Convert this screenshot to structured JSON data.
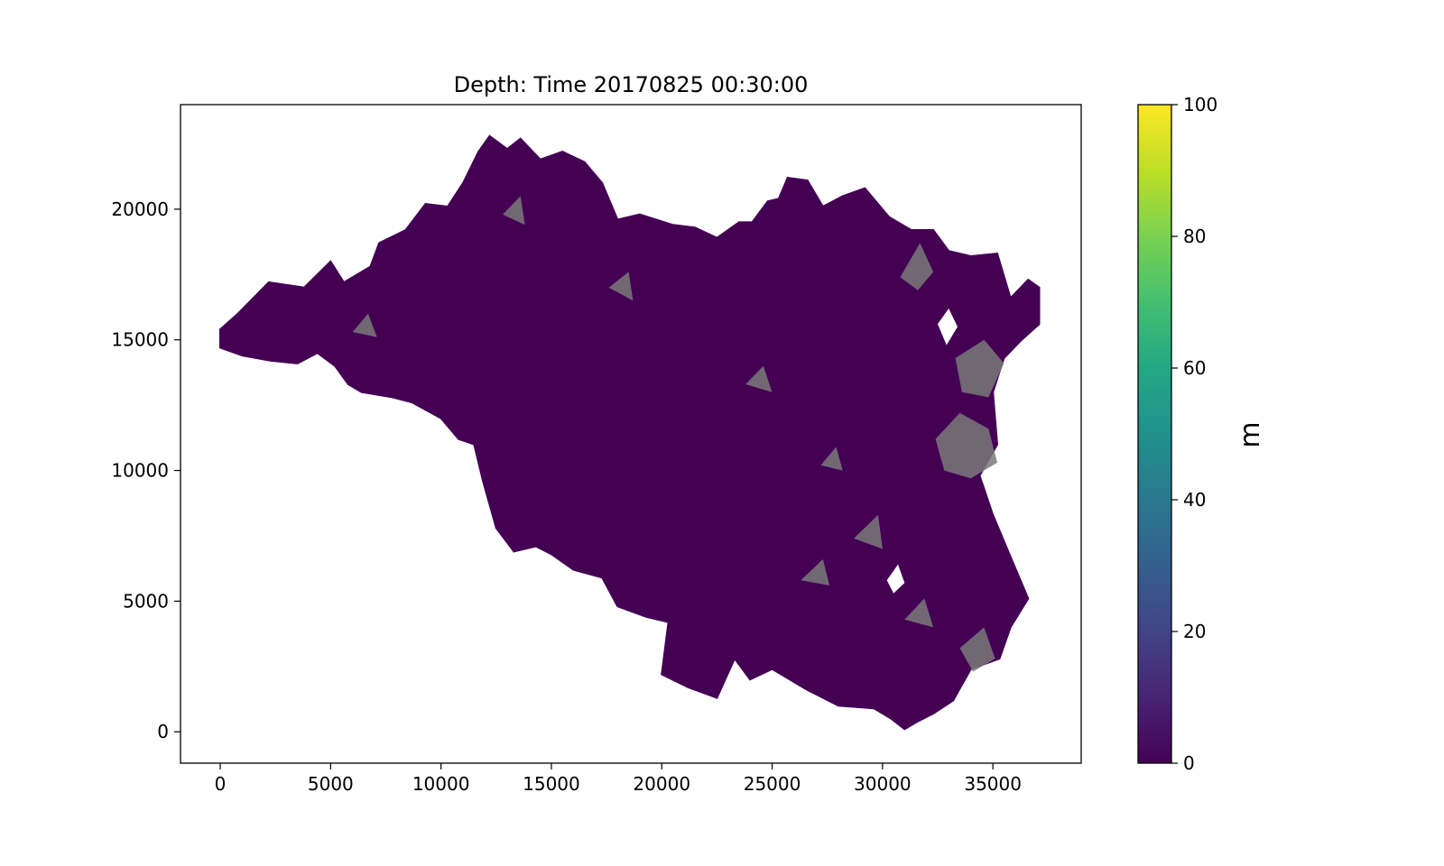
{
  "chart_data": {
    "type": "heatmap",
    "title": "Depth: Time 20170825 00:30:00",
    "xlabel": "",
    "ylabel": "",
    "xlim": [
      -1800,
      39000
    ],
    "ylim": [
      -1200,
      24000
    ],
    "xticks": [
      0,
      5000,
      10000,
      15000,
      20000,
      25000,
      30000,
      35000
    ],
    "yticks": [
      0,
      5000,
      10000,
      15000,
      20000
    ],
    "colorbar": {
      "label": "m",
      "range": [
        0,
        100
      ],
      "ticks": [
        0,
        20,
        40,
        60,
        80,
        100
      ],
      "colormap": "viridis"
    },
    "field_value_dominant": 0,
    "domain_color": "#440154",
    "dry_cell_color": "#7a7a7a",
    "domain_outline": [
      [
        0,
        15400
      ],
      [
        800,
        16000
      ],
      [
        2200,
        17200
      ],
      [
        3800,
        17000
      ],
      [
        5000,
        18000
      ],
      [
        5600,
        17200
      ],
      [
        6800,
        17800
      ],
      [
        7200,
        18700
      ],
      [
        8400,
        19200
      ],
      [
        9300,
        20200
      ],
      [
        10300,
        20100
      ],
      [
        11000,
        21000
      ],
      [
        11700,
        22200
      ],
      [
        12200,
        22800
      ],
      [
        13000,
        22300
      ],
      [
        13600,
        22700
      ],
      [
        14500,
        21900
      ],
      [
        15500,
        22200
      ],
      [
        16500,
        21800
      ],
      [
        17300,
        21000
      ],
      [
        18000,
        19600
      ],
      [
        19000,
        19800
      ],
      [
        20500,
        19400
      ],
      [
        21500,
        19300
      ],
      [
        22500,
        18900
      ],
      [
        23500,
        19500
      ],
      [
        24100,
        19500
      ],
      [
        24800,
        20300
      ],
      [
        25300,
        20400
      ],
      [
        25700,
        21200
      ],
      [
        26600,
        21100
      ],
      [
        27300,
        20100
      ],
      [
        28200,
        20500
      ],
      [
        29200,
        20800
      ],
      [
        30300,
        19700
      ],
      [
        31300,
        19200
      ],
      [
        32300,
        19200
      ],
      [
        33000,
        18400
      ],
      [
        34000,
        18200
      ],
      [
        35200,
        18300
      ],
      [
        35800,
        16600
      ],
      [
        36600,
        17300
      ],
      [
        37100,
        17000
      ],
      [
        37100,
        15600
      ],
      [
        36300,
        15000
      ],
      [
        35500,
        14300
      ],
      [
        35000,
        13000
      ],
      [
        35200,
        11000
      ],
      [
        34400,
        9800
      ],
      [
        35000,
        8300
      ],
      [
        35800,
        6700
      ],
      [
        36600,
        5100
      ],
      [
        35800,
        4000
      ],
      [
        35300,
        2800
      ],
      [
        34000,
        2400
      ],
      [
        33200,
        1200
      ],
      [
        32300,
        700
      ],
      [
        31600,
        400
      ],
      [
        31000,
        100
      ],
      [
        30400,
        500
      ],
      [
        29600,
        900
      ],
      [
        28000,
        1000
      ],
      [
        26600,
        1600
      ],
      [
        25000,
        2400
      ],
      [
        24000,
        2000
      ],
      [
        23300,
        2800
      ],
      [
        22500,
        1300
      ],
      [
        21200,
        1700
      ],
      [
        20000,
        2200
      ],
      [
        20300,
        4200
      ],
      [
        19300,
        4400
      ],
      [
        18000,
        4800
      ],
      [
        17300,
        5900
      ],
      [
        16000,
        6200
      ],
      [
        15000,
        6800
      ],
      [
        14300,
        7100
      ],
      [
        13300,
        6900
      ],
      [
        12500,
        7800
      ],
      [
        11900,
        9600
      ],
      [
        11500,
        11000
      ],
      [
        10800,
        11200
      ],
      [
        10000,
        12000
      ],
      [
        8700,
        12600
      ],
      [
        7800,
        12800
      ],
      [
        6400,
        13000
      ],
      [
        5800,
        13300
      ],
      [
        5200,
        14000
      ],
      [
        4400,
        14500
      ],
      [
        3500,
        14100
      ],
      [
        2300,
        14200
      ],
      [
        1000,
        14400
      ],
      [
        0,
        14700
      ]
    ],
    "dry_patches": [
      [
        [
          33300,
          14300
        ],
        [
          34600,
          15000
        ],
        [
          35500,
          14100
        ],
        [
          34800,
          12800
        ],
        [
          33600,
          13000
        ]
      ],
      [
        [
          32400,
          11200
        ],
        [
          33500,
          12200
        ],
        [
          34800,
          11600
        ],
        [
          35200,
          10300
        ],
        [
          34000,
          9700
        ],
        [
          32800,
          10000
        ]
      ],
      [
        [
          30800,
          17400
        ],
        [
          31700,
          18700
        ],
        [
          32300,
          17600
        ],
        [
          31600,
          16900
        ]
      ],
      [
        [
          33500,
          3200
        ],
        [
          34600,
          4000
        ],
        [
          35100,
          2800
        ],
        [
          34100,
          2300
        ]
      ],
      [
        [
          6000,
          15300
        ],
        [
          6700,
          16000
        ],
        [
          7100,
          15100
        ]
      ],
      [
        [
          26300,
          5800
        ],
        [
          27300,
          6600
        ],
        [
          27600,
          5600
        ]
      ],
      [
        [
          28700,
          7400
        ],
        [
          29800,
          8300
        ],
        [
          30000,
          7000
        ]
      ],
      [
        [
          27200,
          10200
        ],
        [
          27900,
          10900
        ],
        [
          28200,
          10000
        ]
      ],
      [
        [
          12800,
          19800
        ],
        [
          13600,
          20500
        ],
        [
          13800,
          19400
        ]
      ],
      [
        [
          17600,
          17000
        ],
        [
          18500,
          17600
        ],
        [
          18700,
          16500
        ]
      ],
      [
        [
          31000,
          4300
        ],
        [
          31900,
          5100
        ],
        [
          32300,
          4000
        ]
      ],
      [
        [
          23800,
          13300
        ],
        [
          24600,
          14000
        ],
        [
          25000,
          13000
        ]
      ]
    ],
    "nodata_holes": [
      [
        [
          32500,
          15600
        ],
        [
          33000,
          16200
        ],
        [
          33400,
          15500
        ],
        [
          32900,
          14800
        ]
      ],
      [
        [
          30200,
          5800
        ],
        [
          30700,
          6400
        ],
        [
          31000,
          5700
        ],
        [
          30500,
          5300
        ]
      ]
    ]
  }
}
